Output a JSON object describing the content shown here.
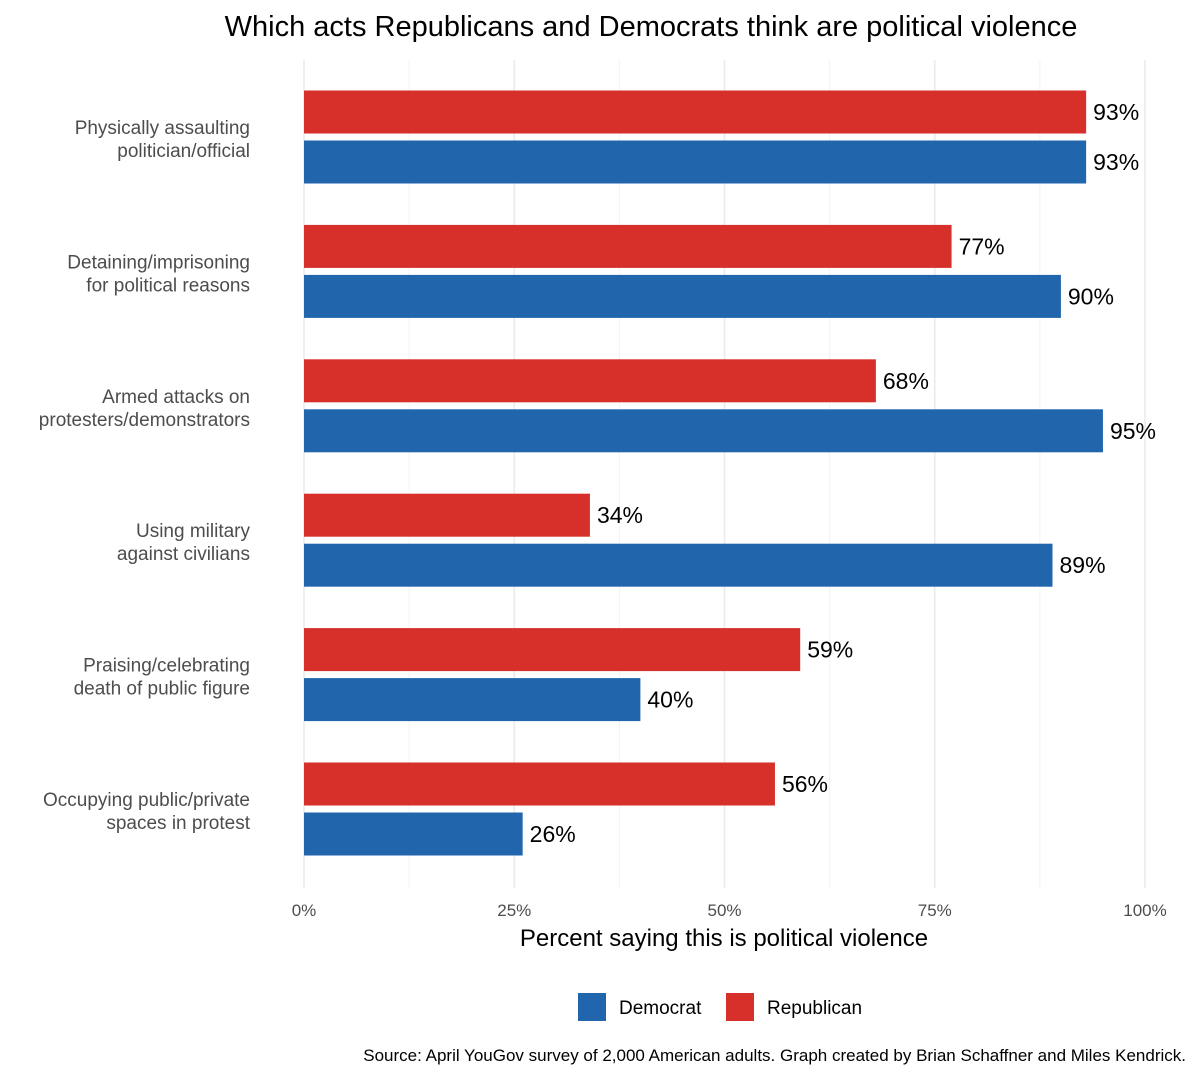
{
  "chart_data": {
    "type": "bar",
    "orientation": "horizontal",
    "title": "Which acts Republicans and Democrats think are political violence",
    "xlabel": "Percent saying this is political violence",
    "ylabel": "",
    "xlim": [
      0,
      100
    ],
    "x_ticks": [
      "0%",
      "25%",
      "50%",
      "75%",
      "100%"
    ],
    "categories": [
      [
        "Physically assaulting",
        "politician/official"
      ],
      [
        "Detaining/imprisoning",
        "for political reasons"
      ],
      [
        "Armed attacks on",
        "protesters/demonstrators"
      ],
      [
        "Using military",
        "against civilians"
      ],
      [
        "Praising/celebrating",
        "death of public figure"
      ],
      [
        "Occupying public/private",
        "spaces in protest"
      ]
    ],
    "series": [
      {
        "name": "Republican",
        "color": "#d7302a",
        "values": [
          93,
          77,
          68,
          34,
          59,
          56
        ],
        "labels": [
          "93%",
          "77%",
          "68%",
          "34%",
          "59%",
          "56%"
        ]
      },
      {
        "name": "Democrat",
        "color": "#2166ac",
        "values": [
          93,
          90,
          95,
          89,
          40,
          26
        ],
        "labels": [
          "93%",
          "90%",
          "95%",
          "89%",
          "40%",
          "26%"
        ]
      }
    ],
    "legend": {
      "position": "bottom",
      "items": [
        {
          "name": "Democrat",
          "color": "#2166ac"
        },
        {
          "name": "Republican",
          "color": "#d7302a"
        }
      ]
    },
    "grid": true,
    "caption": "Source: April YouGov survey of 2,000 American adults. Graph created by Brian Schaffner and Miles Kendrick."
  }
}
